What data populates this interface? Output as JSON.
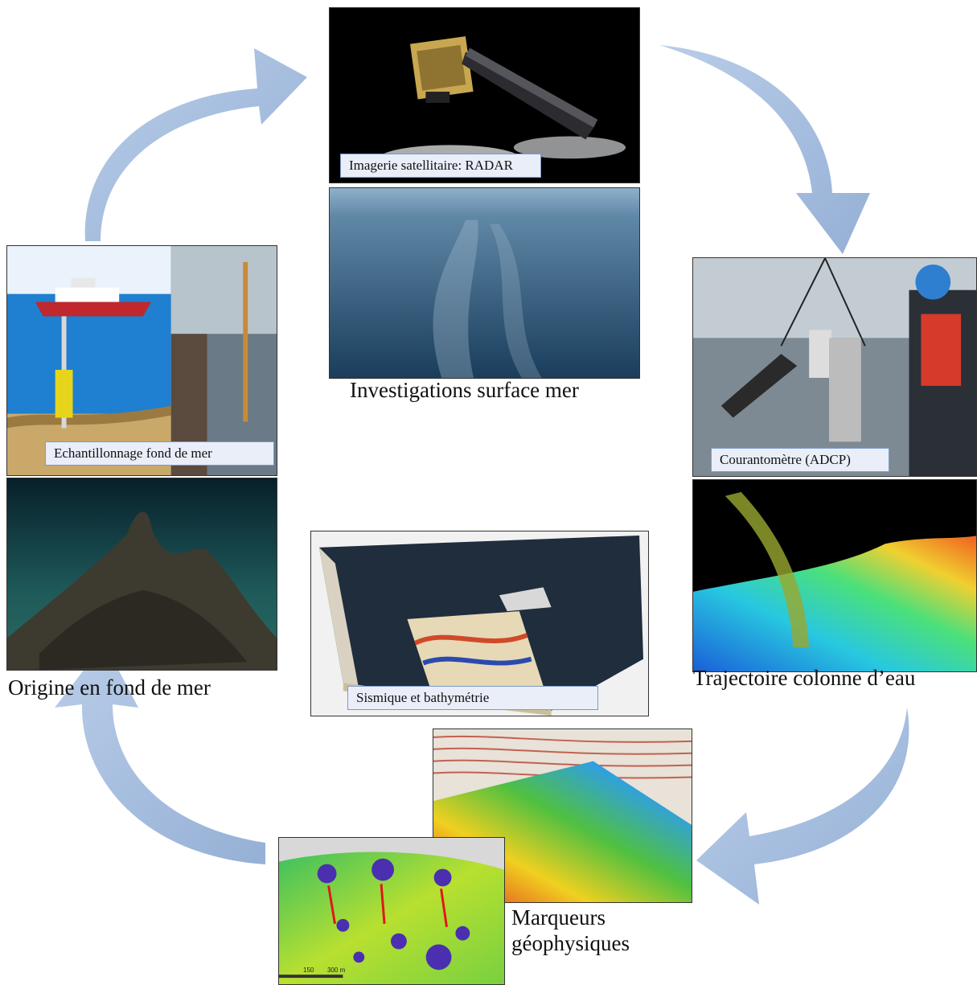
{
  "panels": {
    "satellite_label": "Imagerie satellitaire: RADAR",
    "sampling_label": "Echantillonnage fond de mer",
    "adcp_label": "Courantomètre (ADCP)",
    "seismic_label": "Sismique et bathymétrie"
  },
  "captions": {
    "surface": "Investigations surface mer",
    "origin": "Origine en fond de mer",
    "water_column": "Trajectoire colonne d’eau",
    "markers_line1": "Marqueurs",
    "markers_line2": "géophysiques"
  },
  "scale_bar": {
    "tick_1": "150",
    "tick_2": "300 m"
  },
  "colors": {
    "arrow": "#a7bedf",
    "label_bg": "#e9eef8",
    "label_border": "#7e9bc8"
  }
}
